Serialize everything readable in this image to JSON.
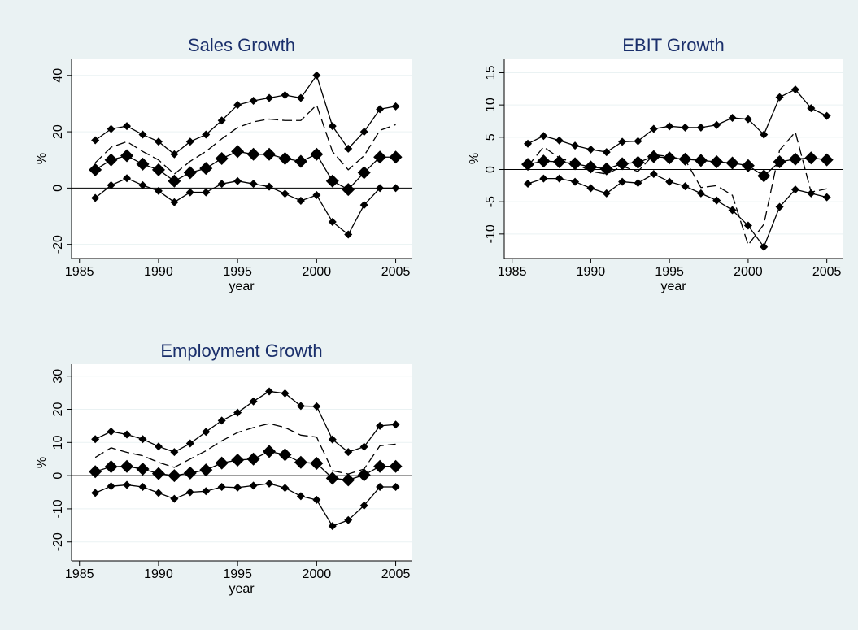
{
  "chart_data": [
    {
      "type": "line",
      "title": "Sales Growth",
      "xlabel": "year",
      "ylabel": "%",
      "x": [
        1986,
        1987,
        1988,
        1989,
        1990,
        1991,
        1992,
        1993,
        1994,
        1995,
        1996,
        1997,
        1998,
        1999,
        2000,
        2001,
        2002,
        2003,
        2004,
        2005
      ],
      "xlim": [
        1984.5,
        2006
      ],
      "xticks": [
        1985,
        1990,
        1995,
        2000,
        2005
      ],
      "ylim": [
        -25,
        46
      ],
      "yticks": [
        -20,
        0,
        20,
        40
      ],
      "grid": true,
      "refline": 0,
      "series": [
        {
          "color": "#000000",
          "marker": "diamond",
          "marker_size": 5,
          "linestyle": "solid",
          "values": [
            17,
            21,
            22,
            19,
            16.5,
            12,
            16.5,
            19,
            24,
            29.5,
            31,
            32,
            33,
            32,
            40,
            22,
            14,
            20,
            28,
            29
          ]
        },
        {
          "color": "#000000",
          "marker": "diamond",
          "marker_size": 8,
          "linestyle": "solid",
          "values": [
            6.5,
            10,
            11.5,
            8.5,
            6.5,
            2.5,
            5.5,
            7,
            10.5,
            13,
            12,
            12,
            10.5,
            9.5,
            12,
            2.5,
            -0.5,
            5.5,
            11,
            11
          ]
        },
        {
          "color": "#000000",
          "marker": "diamond",
          "marker_size": 5,
          "linestyle": "solid",
          "values": [
            -3.5,
            1,
            3.5,
            1,
            -1,
            -5,
            -1.5,
            -1.5,
            1.5,
            2.5,
            1.5,
            0.5,
            -2,
            -4.5,
            -2.5,
            -12,
            -16.5,
            -6,
            0,
            0
          ]
        },
        {
          "color": "#000000",
          "marker": "none",
          "marker_size": 0,
          "linestyle": "dashed",
          "values": [
            9,
            14.5,
            16.5,
            13,
            10,
            5,
            9.5,
            13,
            17.5,
            21.5,
            23.5,
            24.5,
            24,
            24,
            29.5,
            13,
            6.5,
            11.5,
            20.5,
            22.5
          ]
        }
      ]
    },
    {
      "type": "line",
      "title": "EBIT Growth",
      "xlabel": "year",
      "ylabel": "%",
      "x": [
        1986,
        1987,
        1988,
        1989,
        1990,
        1991,
        1992,
        1993,
        1994,
        1995,
        1996,
        1997,
        1998,
        1999,
        2000,
        2001,
        2002,
        2003,
        2004,
        2005
      ],
      "xlim": [
        1984.5,
        2006
      ],
      "xticks": [
        1985,
        1990,
        1995,
        2000,
        2005
      ],
      "ylim": [
        -13.8,
        17.2
      ],
      "yticks": [
        -10,
        -5,
        0,
        5,
        10,
        15
      ],
      "grid": true,
      "refline": 0,
      "series": [
        {
          "color": "#000000",
          "marker": "diamond",
          "marker_size": 5,
          "linestyle": "solid",
          "values": [
            4,
            5.2,
            4.5,
            3.7,
            3.1,
            2.7,
            4.3,
            4.4,
            6.3,
            6.7,
            6.5,
            6.5,
            6.9,
            8,
            7.8,
            5.4,
            11.2,
            12.4,
            9.5,
            8.3
          ]
        },
        {
          "color": "#000000",
          "marker": "diamond",
          "marker_size": 8,
          "linestyle": "solid",
          "values": [
            0.8,
            1.3,
            1.2,
            0.9,
            0.4,
            0.1,
            0.9,
            1.1,
            2,
            1.8,
            1.6,
            1.4,
            1.2,
            1,
            0.6,
            -1,
            1.2,
            1.6,
            1.8,
            1.5
          ]
        },
        {
          "color": "#000000",
          "marker": "diamond",
          "marker_size": 5,
          "linestyle": "solid",
          "values": [
            -2.2,
            -1.4,
            -1.4,
            -1.9,
            -2.9,
            -3.7,
            -1.9,
            -2.1,
            -0.7,
            -1.9,
            -2.6,
            -3.7,
            -4.8,
            -6.3,
            -8.7,
            -12,
            -5.8,
            -3.1,
            -3.7,
            -4.3
          ]
        },
        {
          "color": "#000000",
          "marker": "none",
          "marker_size": 0,
          "linestyle": "dashed",
          "values": [
            0.5,
            3.5,
            1.8,
            1,
            -0.3,
            -0.7,
            0.5,
            -0.3,
            2.3,
            2,
            1.5,
            -2.8,
            -2.5,
            -4,
            -11.7,
            -8.5,
            3,
            5.8,
            -3.5,
            -3
          ]
        }
      ]
    },
    {
      "type": "line",
      "title": "Employment Growth",
      "xlabel": "year",
      "ylabel": "%",
      "x": [
        1986,
        1987,
        1988,
        1989,
        1990,
        1991,
        1992,
        1993,
        1994,
        1995,
        1996,
        1997,
        1998,
        1999,
        2000,
        2001,
        2002,
        2003,
        2004,
        2005
      ],
      "xlim": [
        1984.5,
        2006
      ],
      "xticks": [
        1985,
        1990,
        1995,
        2000,
        2005
      ],
      "ylim": [
        -25.7,
        33.6
      ],
      "yticks": [
        -20,
        -10,
        0,
        10,
        20,
        30
      ],
      "grid": true,
      "refline": 0,
      "series": [
        {
          "color": "#000000",
          "marker": "diamond",
          "marker_size": 5,
          "linestyle": "solid",
          "values": [
            11,
            13.3,
            12.4,
            11,
            8.8,
            7.1,
            9.7,
            13.2,
            16.6,
            19,
            22.4,
            25.4,
            24.8,
            21,
            20.9,
            10.9,
            7.1,
            8.7,
            15,
            15.4
          ]
        },
        {
          "color": "#000000",
          "marker": "diamond",
          "marker_size": 8,
          "linestyle": "solid",
          "values": [
            1.2,
            2.7,
            2.8,
            2,
            0.6,
            0,
            0.8,
            1.7,
            3.8,
            4.7,
            5,
            7.3,
            6.3,
            4,
            3.7,
            -0.8,
            -1.3,
            0.2,
            2.8,
            2.8
          ]
        },
        {
          "color": "#000000",
          "marker": "diamond",
          "marker_size": 5,
          "linestyle": "solid",
          "values": [
            -5.2,
            -3.2,
            -2.8,
            -3.4,
            -5.2,
            -7,
            -5,
            -4.7,
            -3.4,
            -3.6,
            -3,
            -2.4,
            -3.7,
            -6.2,
            -7.3,
            -15.2,
            -13.4,
            -9,
            -3.4,
            -3.4
          ]
        },
        {
          "color": "#000000",
          "marker": "none",
          "marker_size": 0,
          "linestyle": "dashed",
          "values": [
            5.5,
            8.4,
            7,
            6,
            4,
            2.5,
            5,
            7.5,
            10.5,
            13,
            14.5,
            15.7,
            14.5,
            12.2,
            11.6,
            1.5,
            0.5,
            2,
            9,
            9.5
          ]
        }
      ]
    }
  ]
}
